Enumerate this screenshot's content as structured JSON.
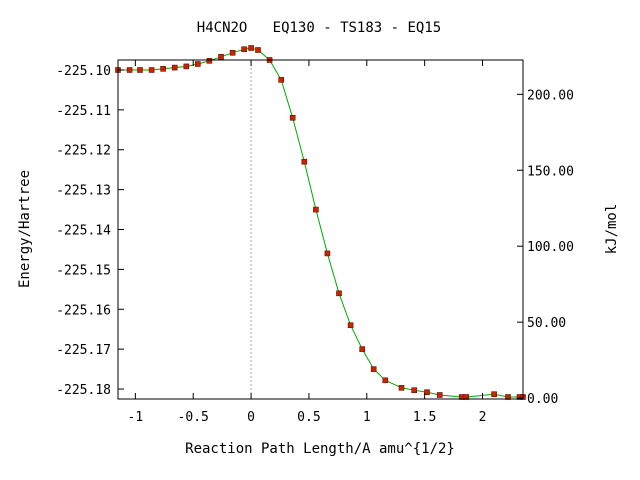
{
  "chart_data": {
    "type": "line",
    "title": "H4CN2O   EQ130 - TS183 - EQ15",
    "xlabel": "Reaction Path Length/A amu^{1/2}",
    "ylabel": "Energy/Hartree",
    "y2label": "kJ/mol",
    "xlim": [
      -1.15,
      2.35
    ],
    "ylim": [
      -225.1825,
      -225.0975
    ],
    "y2lim": [
      -0.6,
      222.6
    ],
    "x_ticks": [
      {
        "value": -1,
        "label": "-1"
      },
      {
        "value": -0.5,
        "label": "-0.5"
      },
      {
        "value": 0,
        "label": "0"
      },
      {
        "value": 0.5,
        "label": "0.5"
      },
      {
        "value": 1,
        "label": "1"
      },
      {
        "value": 1.5,
        "label": "1.5"
      },
      {
        "value": 2,
        "label": "2"
      }
    ],
    "y_ticks": [
      {
        "value": -225.1,
        "label": "-225.10"
      },
      {
        "value": -225.11,
        "label": "-225.11"
      },
      {
        "value": -225.12,
        "label": "-225.12"
      },
      {
        "value": -225.13,
        "label": "-225.13"
      },
      {
        "value": -225.14,
        "label": "-225.14"
      },
      {
        "value": -225.15,
        "label": "-225.15"
      },
      {
        "value": -225.16,
        "label": "-225.16"
      },
      {
        "value": -225.17,
        "label": "-225.17"
      },
      {
        "value": -225.18,
        "label": "-225.18"
      }
    ],
    "y2_ticks": [
      {
        "value": 0,
        "label": "0.00"
      },
      {
        "value": 50,
        "label": "50.00"
      },
      {
        "value": 100,
        "label": "100.00"
      },
      {
        "value": 150,
        "label": "150.00"
      },
      {
        "value": 200,
        "label": "200.00"
      }
    ],
    "ts_marker_x": 0.0,
    "colors": {
      "line": "#00aa00",
      "marker": "#cc2200",
      "marker_border": "#661100",
      "ts_line": "#aaaaaa"
    },
    "series": [
      {
        "x": [
          -1.15,
          -1.05,
          -0.96,
          -0.86,
          -0.76,
          -0.66,
          -0.56,
          -0.46,
          -0.36,
          -0.26,
          -0.16,
          -0.06,
          0.0,
          0.06,
          0.16,
          0.26,
          0.36,
          0.46,
          0.56,
          0.66,
          0.76,
          0.86,
          0.96,
          1.06,
          1.16,
          1.3,
          1.41,
          1.52,
          1.63,
          1.82,
          1.86,
          2.1,
          2.22,
          2.32,
          2.35
        ],
        "y": [
          -225.1,
          -225.1,
          -225.1,
          -225.1,
          -225.0997,
          -225.0994,
          -225.0991,
          -225.0985,
          -225.0977,
          -225.0967,
          -225.0957,
          -225.0948,
          -225.0945,
          -225.095,
          -225.0975,
          -225.1025,
          -225.112,
          -225.123,
          -225.135,
          -225.146,
          -225.156,
          -225.164,
          -225.17,
          -225.175,
          -225.1778,
          -225.1797,
          -225.1803,
          -225.1808,
          -225.1815,
          -225.182,
          -225.182,
          -225.1813,
          -225.182,
          -225.182,
          -225.182
        ]
      }
    ]
  }
}
